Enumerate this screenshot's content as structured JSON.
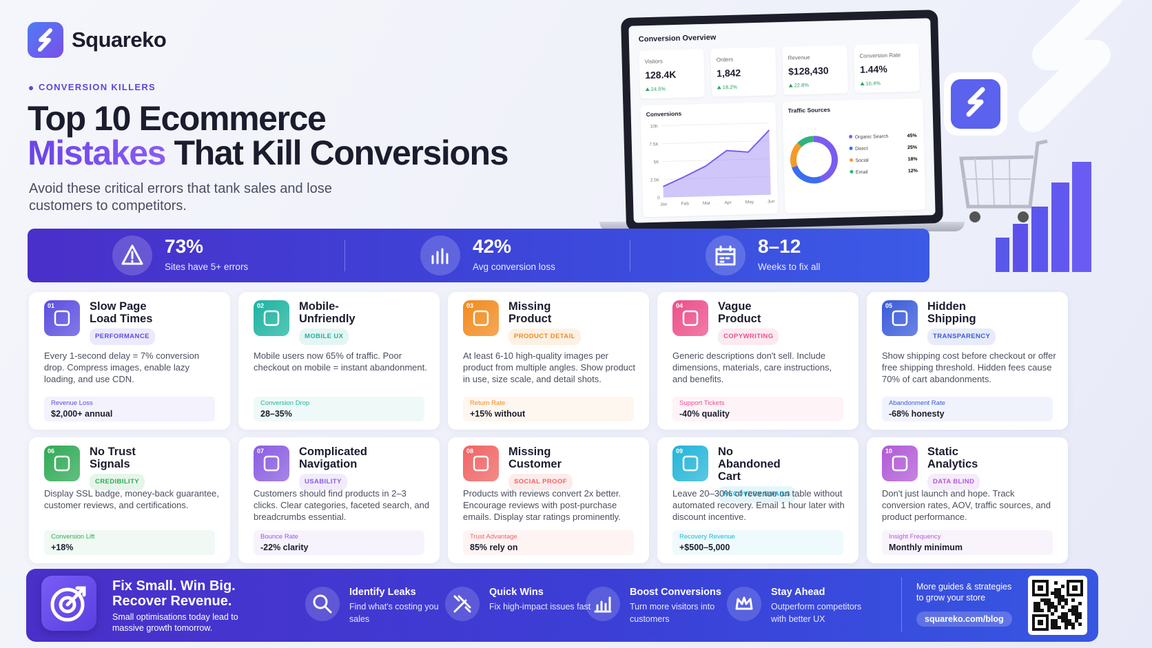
{
  "brand": "Squareko",
  "eyebrow": "CONVERSION KILLERS",
  "title": {
    "line1": "Top 10 Ecommerce",
    "highlight": "Mistakes",
    "rest": "That Kill Conversions"
  },
  "subtitle": "Avoid these critical errors that tank sales and lose customers to competitors.",
  "dashboard": {
    "title": "Conversion Overview",
    "kpis": [
      {
        "label": "Visitors",
        "value": "128.4K",
        "change": "24.5%"
      },
      {
        "label": "Orders",
        "value": "1,842",
        "change": "18.2%"
      },
      {
        "label": "Revenue",
        "value": "$128,430",
        "change": "22.8%"
      },
      {
        "label": "Conversion Rate",
        "value": "1.44%",
        "change": "16.4%"
      }
    ],
    "chart_data": {
      "type": "area",
      "title": "Conversions",
      "categories": [
        "Jan",
        "Feb",
        "Mar",
        "Apr",
        "May",
        "Jun"
      ],
      "values": [
        1500,
        2800,
        4200,
        6300,
        6000,
        9000
      ],
      "color": "#7b5cf0",
      "ylim": [
        0,
        10000
      ],
      "yticks": [
        {
          "value": 0,
          "label": "0"
        },
        {
          "value": 2500,
          "label": "2.5K"
        },
        {
          "value": 5000,
          "label": "5K"
        },
        {
          "value": 7500,
          "label": "7.5K"
        },
        {
          "value": 10000,
          "label": "10K"
        }
      ]
    },
    "sources": {
      "type": "donut",
      "title": "Traffic Sources",
      "categories": [
        "Organic Search",
        "Direct",
        "Social",
        "Email"
      ],
      "values": [
        45,
        25,
        18,
        12
      ],
      "value_labels": [
        "45%",
        "25%",
        "18%",
        "12%"
      ],
      "colors": [
        "#7b5cf0",
        "#3b6df0",
        "#f29b2b",
        "#2fb37a"
      ]
    }
  },
  "stats": [
    {
      "value": "73%",
      "label": "Sites have 5+ errors"
    },
    {
      "value": "42%",
      "label": "Avg conversion loss"
    },
    {
      "value": "8–12",
      "label": "Weeks to fix all"
    }
  ],
  "cards": [
    {
      "number": "01",
      "title": "Slow Page Load Times",
      "tag": "PERFORMANCE",
      "body": "Every 1-second delay = 7% conversion drop. Compress images, enable lazy loading, and use CDN.",
      "metric_label": "Revenue Loss",
      "metric_value": "$2,000+ annual",
      "color": "#5b4de0"
    },
    {
      "number": "02",
      "title": "Mobile-Unfriendly",
      "tag": "MOBILE UX",
      "body": "Mobile users now 65% of traffic. Poor checkout on mobile = instant abandonment.",
      "metric_label": "Conversion Drop",
      "metric_value": "28–35%",
      "color": "#1db3a0"
    },
    {
      "number": "03",
      "title": "Missing Product",
      "tag": "PRODUCT DETAIL",
      "body": "At least 6-10 high-quality images per product from multiple angles. Show product in use, size scale, and detail shots.",
      "metric_label": "Return Rate",
      "metric_value": "+15% without",
      "color": "#f28a1e"
    },
    {
      "number": "04",
      "title": "Vague Product",
      "tag": "COPYWRITING",
      "body": "Generic descriptions don't sell. Include dimensions, materials, care instructions, and benefits.",
      "metric_label": "Support Tickets",
      "metric_value": "-40% quality",
      "color": "#ec4f8a"
    },
    {
      "number": "05",
      "title": "Hidden Shipping",
      "tag": "TRANSPARENCY",
      "body": "Show shipping cost before checkout or offer free shipping threshold. Hidden fees cause 70% of cart abandonments.",
      "metric_label": "Abandonment Rate",
      "metric_value": "-68% honesty",
      "color": "#3a5bd9"
    },
    {
      "number": "06",
      "title": "No Trust Signals",
      "tag": "CREDIBILITY",
      "body": "Display SSL badge, money-back guarantee, customer reviews, and certifications.",
      "metric_label": "Conversion Lift",
      "metric_value": "+18%",
      "color": "#2faa55"
    },
    {
      "number": "07",
      "title": "Complicated Navigation",
      "tag": "USABILITY",
      "body": "Customers should find products in 2–3 clicks. Clear categories, faceted search, and breadcrumbs essential.",
      "metric_label": "Bounce Rate",
      "metric_value": "-22% clarity",
      "color": "#8b5ce0"
    },
    {
      "number": "08",
      "title": "Missing Customer",
      "tag": "SOCIAL PROOF",
      "body": "Products with reviews convert 2x better. Encourage reviews with post-purchase emails. Display star ratings prominently.",
      "metric_label": "Trust Advantage",
      "metric_value": "85% rely on",
      "color": "#f06464"
    },
    {
      "number": "09",
      "title": "No Abandoned Cart",
      "tag": "RECOVERY EMAILS",
      "body": "Leave 20–30% of revenue on table without automated recovery. Email 1 hour later with discount incentive.",
      "metric_label": "Recovery Revenue",
      "metric_value": "+$500–5,000",
      "color": "#22b5d8"
    },
    {
      "number": "10",
      "title": "Static Analytics",
      "tag": "DATA BLIND",
      "body": "Don't just launch and hope. Track conversion rates, AOV, traffic sources, and product performance.",
      "metric_label": "Insight Frequency",
      "metric_value": "Monthly minimum",
      "color": "#b15ad6"
    }
  ],
  "footer": {
    "headline": "Fix Small. Win Big. Recover Revenue.",
    "sub": "Small optimisations today lead to massive growth tomorrow.",
    "features": [
      {
        "title": "Identify Leaks",
        "text": "Find what's costing you sales"
      },
      {
        "title": "Quick Wins",
        "text": "Fix high-impact issues fast"
      },
      {
        "title": "Boost Conversions",
        "text": "Turn more visitors into customers"
      },
      {
        "title": "Stay Ahead",
        "text": "Outperform competitors with better UX"
      }
    ],
    "cta_text": "More guides & strategies to grow your store",
    "cta_link": "squareko.com/blog"
  }
}
